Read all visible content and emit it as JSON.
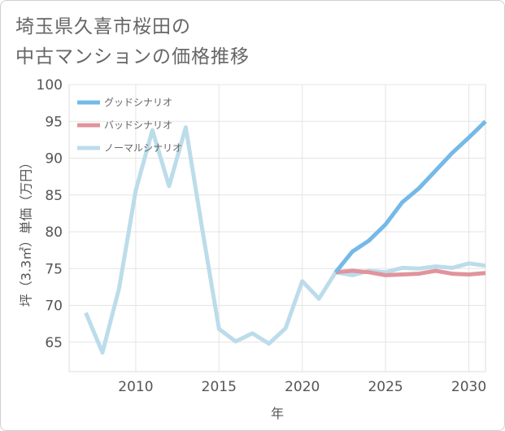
{
  "title_line1": "埼玉県久喜市桜田の",
  "title_line2": "中古マンションの価格推移",
  "chart_data": {
    "type": "line",
    "xlabel": "年",
    "ylabel": "坪（3.3㎡）単価（万円）",
    "xlim": [
      2006,
      2031
    ],
    "ylim": [
      61,
      100
    ],
    "x_ticks": [
      2010,
      2015,
      2020,
      2025,
      2030
    ],
    "y_ticks": [
      65,
      70,
      75,
      80,
      85,
      90,
      95,
      100
    ],
    "grid": true,
    "legend_position": "top-left",
    "series": [
      {
        "name": "グッドシナリオ",
        "color": "#74b9e8",
        "x": [
          2022,
          2023,
          2024,
          2025,
          2026,
          2027,
          2028,
          2029,
          2030,
          2031
        ],
        "values": [
          74.5,
          77.3,
          78.8,
          81.0,
          84.0,
          85.9,
          88.3,
          90.7,
          92.8,
          95.0
        ]
      },
      {
        "name": "バッドシナリオ",
        "color": "#e0949c",
        "x": [
          2022,
          2023,
          2024,
          2025,
          2026,
          2027,
          2028,
          2029,
          2030,
          2031
        ],
        "values": [
          74.5,
          74.7,
          74.5,
          74.1,
          74.2,
          74.3,
          74.7,
          74.3,
          74.2,
          74.4
        ]
      },
      {
        "name": "ノーマルシナリオ",
        "color": "#bcdcea",
        "x": [
          2007,
          2008,
          2009,
          2010,
          2011,
          2012,
          2013,
          2014,
          2015,
          2016,
          2017,
          2018,
          2019,
          2020,
          2021,
          2022,
          2023,
          2024,
          2025,
          2026,
          2027,
          2028,
          2029,
          2030,
          2031
        ],
        "values": [
          69.0,
          63.6,
          72.3,
          85.6,
          93.8,
          86.2,
          94.2,
          80.3,
          66.8,
          65.1,
          66.2,
          64.8,
          66.9,
          73.3,
          70.9,
          74.5,
          74.1,
          74.7,
          74.5,
          75.1,
          75.0,
          75.3,
          75.1,
          75.7,
          75.4
        ]
      }
    ]
  }
}
